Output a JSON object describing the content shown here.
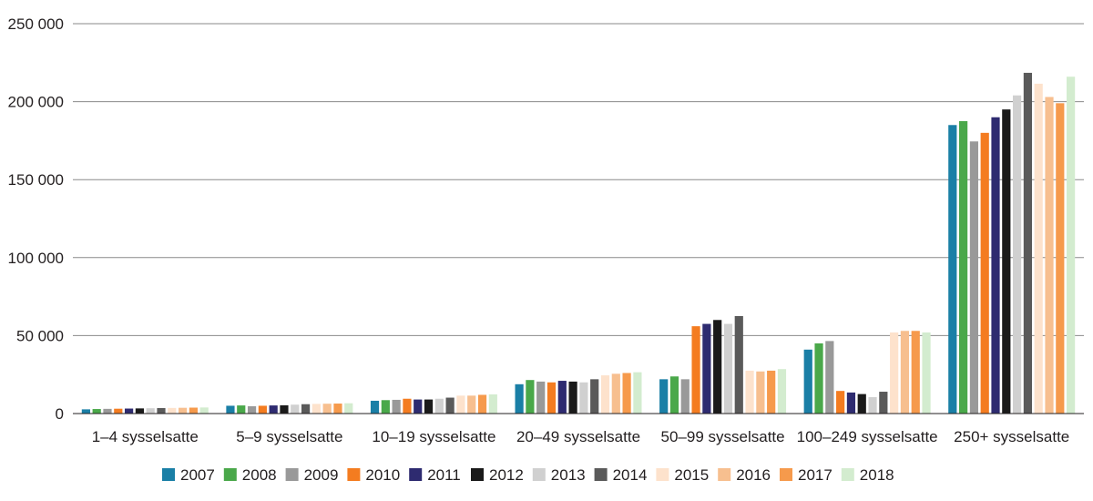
{
  "chart_data": {
    "type": "bar",
    "title": "",
    "xlabel": "",
    "ylabel": "",
    "ylim": [
      0,
      250000
    ],
    "yticks": [
      0,
      50000,
      100000,
      150000,
      200000,
      250000
    ],
    "ytick_labels": [
      "0",
      "50 000",
      "100 000",
      "150 000",
      "200 000",
      "250 000"
    ],
    "grid": true,
    "legend_position": "bottom",
    "categories": [
      "1–4 sysselsatte",
      "5–9 sysselsatte",
      "10–19 sysselsatte",
      "20–49 sysselsatte",
      "50–99 sysselsatte",
      "100–249 sysselsatte",
      "250+ sysselsatte"
    ],
    "series": [
      {
        "name": "2007",
        "color": "#1a7fa6",
        "values": [
          2700,
          5000,
          8200,
          18800,
          22000,
          41000,
          185000
        ]
      },
      {
        "name": "2008",
        "color": "#4aa84a",
        "values": [
          2900,
          5200,
          8600,
          21500,
          23800,
          45000,
          187500
        ]
      },
      {
        "name": "2009",
        "color": "#999999",
        "values": [
          3000,
          4700,
          8800,
          20500,
          22000,
          46500,
          174500
        ]
      },
      {
        "name": "2010",
        "color": "#f47c20",
        "values": [
          3100,
          5000,
          9500,
          20000,
          56000,
          14500,
          180000
        ]
      },
      {
        "name": "2011",
        "color": "#2e2b70",
        "values": [
          3200,
          5200,
          9000,
          21000,
          57500,
          13500,
          190000
        ]
      },
      {
        "name": "2012",
        "color": "#1a1a1a",
        "values": [
          3300,
          5300,
          9000,
          20500,
          60000,
          12500,
          195000
        ]
      },
      {
        "name": "2013",
        "color": "#d0d0d0",
        "values": [
          3400,
          5700,
          9500,
          20000,
          57500,
          10500,
          204000
        ]
      },
      {
        "name": "2014",
        "color": "#5a5a5a",
        "values": [
          3500,
          6000,
          10200,
          22000,
          62500,
          14000,
          218500
        ]
      },
      {
        "name": "2015",
        "color": "#fde2cc",
        "values": [
          3600,
          6200,
          11500,
          24500,
          27500,
          52000,
          211500
        ]
      },
      {
        "name": "2016",
        "color": "#f7bf8f",
        "values": [
          3700,
          6300,
          11500,
          25500,
          27000,
          53000,
          203000
        ]
      },
      {
        "name": "2017",
        "color": "#f69a4c",
        "values": [
          3800,
          6400,
          12000,
          26000,
          27500,
          53000,
          199000
        ]
      },
      {
        "name": "2018",
        "color": "#d3eccf",
        "values": [
          3900,
          6600,
          12300,
          26500,
          28500,
          52000,
          216000
        ]
      }
    ]
  }
}
